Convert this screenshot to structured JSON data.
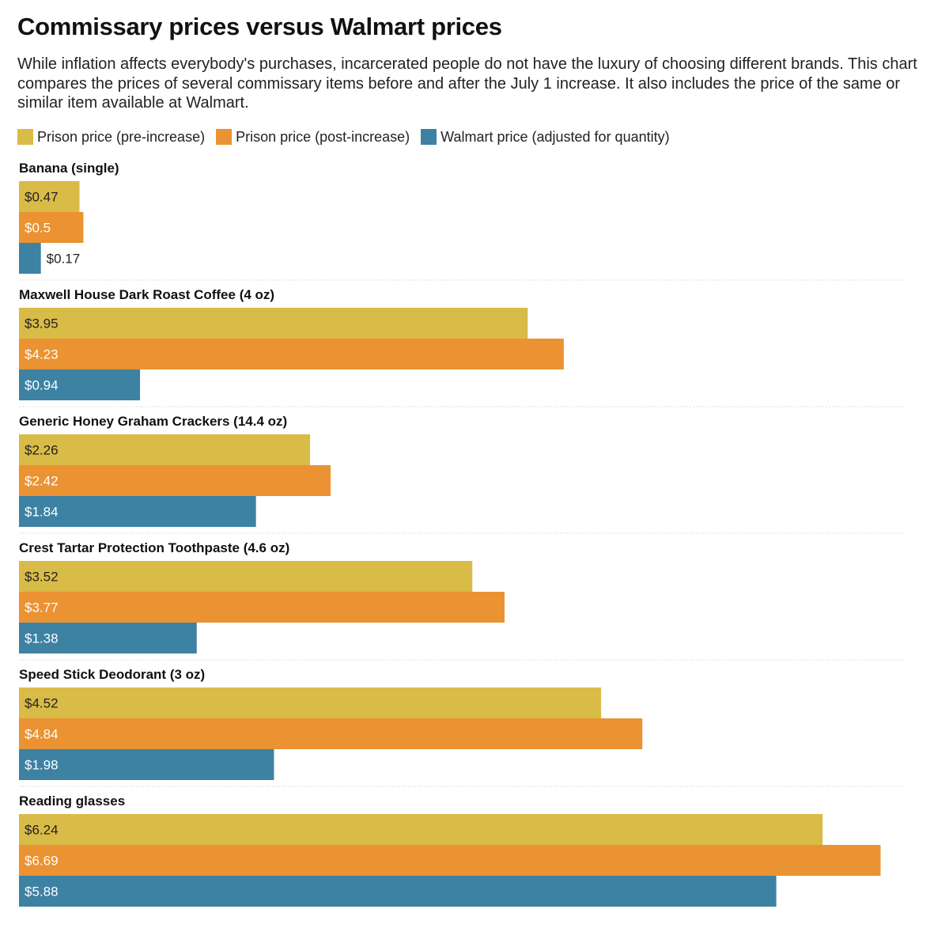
{
  "title": "Commissary prices versus Walmart prices",
  "subtitle": "While inflation affects everybody's purchases, incarcerated people do not have the luxury of choosing different brands. This chart compares the prices of several commissary items before and after the July 1 increase. It also includes the price of the same or similar item available at Walmart.",
  "chart_data": {
    "type": "bar",
    "orientation": "horizontal",
    "grouped": true,
    "value_prefix": "$",
    "legend_placement": "top-left",
    "grid": false,
    "xlim": [
      0,
      7
    ],
    "categories": [
      "Banana (single)",
      "Maxwell House Dark Roast Coffee (4 oz)",
      "Generic Honey Graham Crackers (14.4 oz)",
      "Crest Tartar Protection Toothpaste (4.6 oz)",
      "Speed Stick Deodorant (3 oz)",
      "Reading glasses"
    ],
    "series": [
      {
        "name": "Prison price (pre-increase)",
        "color": "#d9bb47",
        "label_color": "#222222",
        "values": [
          0.47,
          3.95,
          2.26,
          3.52,
          4.52,
          6.24
        ]
      },
      {
        "name": "Prison price (post-increase)",
        "color": "#eb9232",
        "label_color": "#ffffff",
        "values": [
          0.5,
          4.23,
          2.42,
          3.77,
          4.84,
          6.69
        ]
      },
      {
        "name": "Walmart price (adjusted for quantity)",
        "color": "#3d81a3",
        "label_color": "#ffffff",
        "values": [
          0.17,
          0.94,
          1.84,
          1.38,
          1.98,
          5.88
        ]
      }
    ]
  }
}
